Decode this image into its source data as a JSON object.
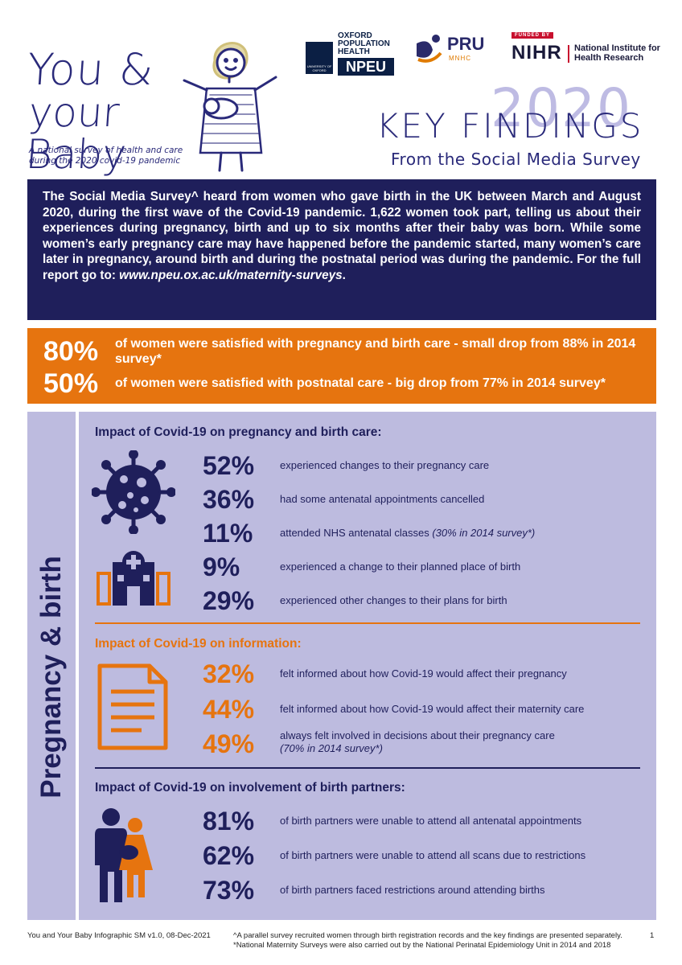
{
  "header": {
    "logo_line1": "You &",
    "logo_line2": "your Baby",
    "tagline": "A national survey of health and care during the 2020 covid-19 pandemic",
    "oxford_text": "OXFORD POPULATION HEALTH",
    "oxford_crest": "UNIVERSITY OF OXFORD",
    "npeu": "NPEU",
    "pru_name": "PRU",
    "pru_sub": "MNHC",
    "nihr_funded": "FUNDED BY",
    "nihr_name": "NIHR",
    "nihr_institute": "National Institute for Health Research",
    "title": "KEY FINDINGS",
    "year": "2020",
    "subtitle": "From the Social Media Survey"
  },
  "intro": {
    "text": "The Social Media Survey^ heard from women who gave birth in the UK between March and August 2020, during the first wave of the Covid-19 pandemic. 1,622 women took part, telling us about their experiences during pregnancy, birth and up to six months after their baby was born. While some women’s early pregnancy care may have happened before the pandemic started, many women’s care later in pregnancy, around birth and during the postnatal period was during the pandemic. For the full report go to: ",
    "url": "www.npeu.ox.ac.uk/maternity-surveys",
    "end": "."
  },
  "satisfaction": [
    {
      "pct": "80%",
      "text": "of women were satisfied with pregnancy and birth care - small drop from 88% in 2014 survey*"
    },
    {
      "pct": "50%",
      "text": "of women were satisfied with postnatal care - big drop from 77% in 2014 survey*"
    }
  ],
  "panel": {
    "side_label": "Pregnancy & birth",
    "sections": {
      "care_title": "Impact of Covid-19 on pregnancy and birth care:",
      "care": [
        {
          "pct": "52%",
          "text": "experienced changes to their pregnancy care"
        },
        {
          "pct": "36%",
          "text": "had some antenatal appointments cancelled"
        },
        {
          "pct": "11%",
          "text": "attended NHS antenatal classes ",
          "note": "(30% in 2014 survey*)"
        },
        {
          "pct": "9%",
          "text": "experienced a change to their planned place of birth"
        },
        {
          "pct": "29%",
          "text": "experienced other changes to their plans for birth"
        }
      ],
      "info_title": "Impact of Covid-19 on information:",
      "info": [
        {
          "pct": "32%",
          "text": "felt informed about how Covid-19 would affect their pregnancy"
        },
        {
          "pct": "44%",
          "text": "felt informed about how Covid-19 would affect their maternity care"
        },
        {
          "pct": "49%",
          "text": "always felt involved in decisions about their pregnancy care",
          "note": "(70% in 2014 survey*)"
        }
      ],
      "partners_title": "Impact of Covid-19 on involvement of birth partners:",
      "partners": [
        {
          "pct": "81%",
          "text": "of birth partners were unable to attend all antenatal appointments"
        },
        {
          "pct": "62%",
          "text": "of birth partners were unable to attend all scans due to restrictions"
        },
        {
          "pct": "73%",
          "text": "of birth partners faced restrictions around attending births"
        }
      ]
    }
  },
  "footer": {
    "left": "You and Your Baby Infographic SM v1.0, 08-Dec-2021",
    "note1": "^A parallel survey recruited women through birth registration records and the key findings are presented separately.",
    "note2": "*National Maternity Surveys were also carried out by the National Perinatal Epidemiology Unit in 2014 and 2018",
    "page": "1"
  },
  "colors": {
    "navy": "#1f1f5b",
    "orange": "#e6740f",
    "lavender": "#bdbbdf"
  },
  "icons": [
    "virus-icon",
    "hospital-icon",
    "document-icon",
    "parents-icon"
  ]
}
